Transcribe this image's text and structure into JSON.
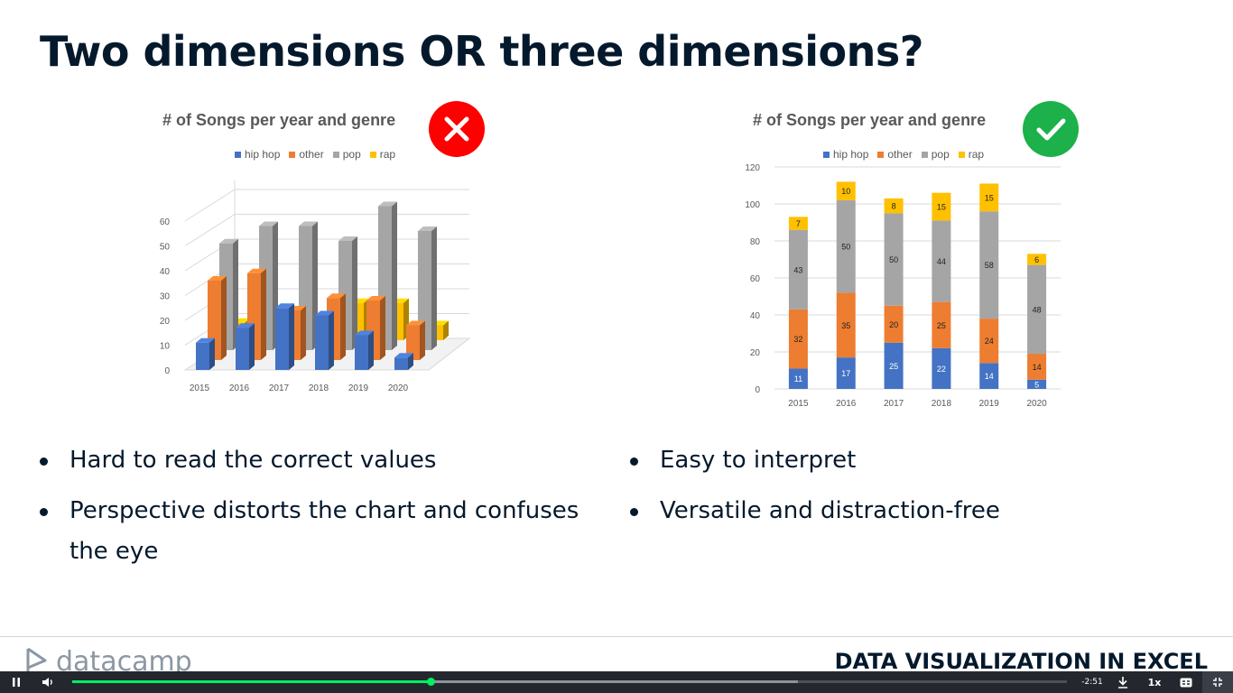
{
  "slide": {
    "title": "Two dimensions OR three dimensions?"
  },
  "colors": {
    "hip_hop": "#4472c4",
    "other": "#ed7d31",
    "pop": "#a5a5a5",
    "rap": "#ffc000",
    "bad_badge": "#ff0000",
    "good_badge": "#1cb14b",
    "accent": "#03ef62"
  },
  "left_chart": {
    "title": "# of Songs per year and genre",
    "legend": [
      "hip hop",
      "other",
      "pop",
      "rap"
    ],
    "badge_icon": "x-icon"
  },
  "right_chart": {
    "title": "# of Songs per year and genre",
    "legend": [
      "hip hop",
      "other",
      "pop",
      "rap"
    ],
    "badge_icon": "check-icon"
  },
  "chart_data": [
    {
      "type": "bar",
      "style": "3d-clustered",
      "title": "# of Songs per year and genre",
      "categories": [
        "2015",
        "2016",
        "2017",
        "2018",
        "2019",
        "2020"
      ],
      "yticks": [
        "0",
        "10",
        "20",
        "30",
        "40",
        "50",
        "60"
      ],
      "ylim": [
        0,
        60
      ],
      "series": [
        {
          "name": "hip hop",
          "values": [
            11,
            17,
            25,
            22,
            14,
            5
          ]
        },
        {
          "name": "other",
          "values": [
            32,
            35,
            20,
            25,
            24,
            14
          ]
        },
        {
          "name": "pop",
          "values": [
            43,
            50,
            50,
            44,
            58,
            48
          ]
        },
        {
          "name": "rap",
          "values": [
            7,
            10,
            8,
            15,
            15,
            6
          ]
        }
      ],
      "legend_position": "top"
    },
    {
      "type": "bar",
      "style": "stacked",
      "title": "# of Songs per year and genre",
      "categories": [
        "2015",
        "2016",
        "2017",
        "2018",
        "2019",
        "2020"
      ],
      "yticks": [
        "0",
        "20",
        "40",
        "60",
        "80",
        "100",
        "120"
      ],
      "ylim": [
        0,
        120
      ],
      "series": [
        {
          "name": "hip hop",
          "values": [
            11,
            17,
            25,
            22,
            14,
            5
          ]
        },
        {
          "name": "other",
          "values": [
            32,
            35,
            20,
            25,
            24,
            14
          ]
        },
        {
          "name": "pop",
          "values": [
            43,
            50,
            50,
            44,
            58,
            48
          ]
        },
        {
          "name": "rap",
          "values": [
            7,
            10,
            8,
            15,
            15,
            6
          ]
        }
      ],
      "legend_position": "top",
      "data_labels": true
    }
  ],
  "bullets_left": [
    "Hard to read the correct values",
    "Perspective distorts the chart and confuses the eye"
  ],
  "bullets_right": [
    "Easy to interpret",
    "Versatile and distraction-free"
  ],
  "footer": {
    "logo_text": "datacamp",
    "course_name": "DATA VISUALIZATION IN EXCEL"
  },
  "player": {
    "time_remaining": "-2:51",
    "speed": "1x",
    "progress_fraction": 0.36,
    "buffered_fraction": 0.73,
    "icons": [
      "pause-icon",
      "volume-icon",
      "download-icon",
      "captions-icon",
      "exit-fullscreen-icon"
    ]
  }
}
